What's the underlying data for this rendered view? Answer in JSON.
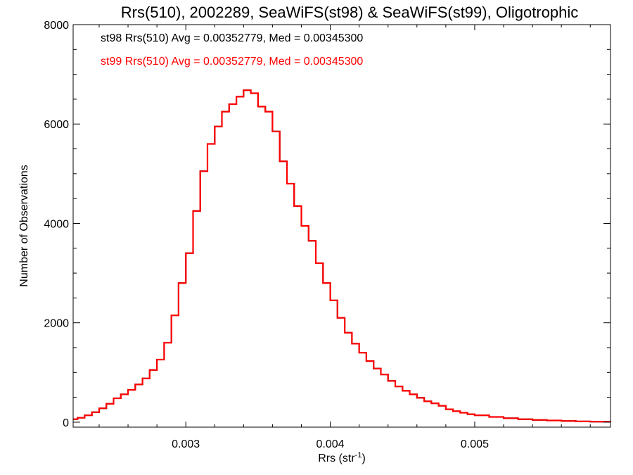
{
  "chart_data": {
    "type": "line",
    "title": "Rrs(510), 2002289, SeaWiFS(st98) & SeaWiFS(st99), Oligotrophic",
    "xlabel": "Rrs (str",
    "xlabel_sup": "-1",
    "xlabel_close": ")",
    "ylabel": "Number of Observations",
    "xlim": [
      0.00222,
      0.00594
    ],
    "ylim": [
      -100,
      8000
    ],
    "x_ticks": [
      0.003,
      0.004,
      0.005
    ],
    "x_tick_labels": [
      "0.003",
      "0.004",
      "0.005"
    ],
    "y_ticks": [
      0,
      2000,
      4000,
      6000,
      8000
    ],
    "y_tick_labels": [
      "0",
      "2000",
      "4000",
      "6000",
      "8000"
    ],
    "legend_placement": "top-left",
    "series": [
      {
        "name": "st98 Rrs(510) Avg = 0.00352779, Med = 0.00345300",
        "color": "#000000",
        "values": [
          [
            0.00222,
            60
          ],
          [
            0.00225,
            90
          ],
          [
            0.0023,
            140
          ],
          [
            0.00235,
            200
          ],
          [
            0.0024,
            280
          ],
          [
            0.00245,
            370
          ],
          [
            0.0025,
            480
          ],
          [
            0.00255,
            560
          ],
          [
            0.0026,
            650
          ],
          [
            0.00265,
            760
          ],
          [
            0.0027,
            880
          ],
          [
            0.00275,
            1050
          ],
          [
            0.0028,
            1260
          ],
          [
            0.00285,
            1600
          ],
          [
            0.0029,
            2150
          ],
          [
            0.00295,
            2800
          ],
          [
            0.003,
            3400
          ],
          [
            0.00305,
            4250
          ],
          [
            0.0031,
            5050
          ],
          [
            0.00315,
            5600
          ],
          [
            0.0032,
            5950
          ],
          [
            0.00325,
            6250
          ],
          [
            0.0033,
            6400
          ],
          [
            0.00335,
            6550
          ],
          [
            0.0034,
            6680
          ],
          [
            0.00345,
            6620
          ],
          [
            0.0035,
            6350
          ],
          [
            0.00355,
            6250
          ],
          [
            0.0036,
            5850
          ],
          [
            0.00365,
            5250
          ],
          [
            0.0037,
            4800
          ],
          [
            0.00375,
            4350
          ],
          [
            0.0038,
            3950
          ],
          [
            0.00385,
            3650
          ],
          [
            0.0039,
            3200
          ],
          [
            0.00395,
            2800
          ],
          [
            0.004,
            2450
          ],
          [
            0.00405,
            2100
          ],
          [
            0.0041,
            1800
          ],
          [
            0.00415,
            1580
          ],
          [
            0.0042,
            1400
          ],
          [
            0.00425,
            1230
          ],
          [
            0.0043,
            1080
          ],
          [
            0.00435,
            960
          ],
          [
            0.0044,
            830
          ],
          [
            0.00445,
            720
          ],
          [
            0.0045,
            630
          ],
          [
            0.00455,
            560
          ],
          [
            0.0046,
            490
          ],
          [
            0.00465,
            420
          ],
          [
            0.0047,
            380
          ],
          [
            0.00475,
            330
          ],
          [
            0.0048,
            260
          ],
          [
            0.00485,
            220
          ],
          [
            0.0049,
            190
          ],
          [
            0.00495,
            160
          ],
          [
            0.005,
            140
          ],
          [
            0.0051,
            105
          ],
          [
            0.0052,
            80
          ],
          [
            0.0053,
            60
          ],
          [
            0.0054,
            45
          ],
          [
            0.0055,
            35
          ],
          [
            0.0056,
            25
          ],
          [
            0.0057,
            15
          ],
          [
            0.0058,
            10
          ],
          [
            0.00594,
            5
          ]
        ]
      },
      {
        "name": "st99 Rrs(510) Avg = 0.00352779, Med = 0.00345300",
        "color": "#ff0000",
        "values": [
          [
            0.00222,
            60
          ],
          [
            0.00225,
            90
          ],
          [
            0.0023,
            140
          ],
          [
            0.00235,
            200
          ],
          [
            0.0024,
            280
          ],
          [
            0.00245,
            370
          ],
          [
            0.0025,
            480
          ],
          [
            0.00255,
            560
          ],
          [
            0.0026,
            650
          ],
          [
            0.00265,
            760
          ],
          [
            0.0027,
            880
          ],
          [
            0.00275,
            1050
          ],
          [
            0.0028,
            1260
          ],
          [
            0.00285,
            1600
          ],
          [
            0.0029,
            2150
          ],
          [
            0.00295,
            2800
          ],
          [
            0.003,
            3400
          ],
          [
            0.00305,
            4250
          ],
          [
            0.0031,
            5050
          ],
          [
            0.00315,
            5600
          ],
          [
            0.0032,
            5950
          ],
          [
            0.00325,
            6250
          ],
          [
            0.0033,
            6400
          ],
          [
            0.00335,
            6550
          ],
          [
            0.0034,
            6680
          ],
          [
            0.00345,
            6620
          ],
          [
            0.0035,
            6350
          ],
          [
            0.00355,
            6250
          ],
          [
            0.0036,
            5850
          ],
          [
            0.00365,
            5250
          ],
          [
            0.0037,
            4800
          ],
          [
            0.00375,
            4350
          ],
          [
            0.0038,
            3950
          ],
          [
            0.00385,
            3650
          ],
          [
            0.0039,
            3200
          ],
          [
            0.00395,
            2800
          ],
          [
            0.004,
            2450
          ],
          [
            0.00405,
            2100
          ],
          [
            0.0041,
            1800
          ],
          [
            0.00415,
            1580
          ],
          [
            0.0042,
            1400
          ],
          [
            0.00425,
            1230
          ],
          [
            0.0043,
            1080
          ],
          [
            0.00435,
            960
          ],
          [
            0.0044,
            830
          ],
          [
            0.00445,
            720
          ],
          [
            0.0045,
            630
          ],
          [
            0.00455,
            560
          ],
          [
            0.0046,
            490
          ],
          [
            0.00465,
            420
          ],
          [
            0.0047,
            380
          ],
          [
            0.00475,
            330
          ],
          [
            0.0048,
            260
          ],
          [
            0.00485,
            220
          ],
          [
            0.0049,
            190
          ],
          [
            0.00495,
            160
          ],
          [
            0.005,
            140
          ],
          [
            0.0051,
            105
          ],
          [
            0.0052,
            80
          ],
          [
            0.0053,
            60
          ],
          [
            0.0054,
            45
          ],
          [
            0.0055,
            35
          ],
          [
            0.0056,
            25
          ],
          [
            0.0057,
            15
          ],
          [
            0.0058,
            10
          ],
          [
            0.00594,
            5
          ]
        ]
      }
    ]
  }
}
